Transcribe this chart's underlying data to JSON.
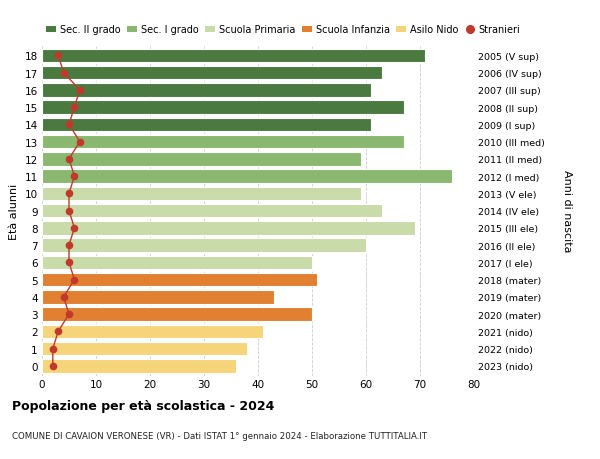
{
  "ages": [
    0,
    1,
    2,
    3,
    4,
    5,
    6,
    7,
    8,
    9,
    10,
    11,
    12,
    13,
    14,
    15,
    16,
    17,
    18
  ],
  "right_labels": [
    "2023 (nido)",
    "2022 (nido)",
    "2021 (nido)",
    "2020 (mater)",
    "2019 (mater)",
    "2018 (mater)",
    "2017 (I ele)",
    "2016 (II ele)",
    "2015 (III ele)",
    "2014 (IV ele)",
    "2013 (V ele)",
    "2012 (I med)",
    "2011 (II med)",
    "2010 (III med)",
    "2009 (I sup)",
    "2008 (II sup)",
    "2007 (III sup)",
    "2006 (IV sup)",
    "2005 (V sup)"
  ],
  "bar_values": [
    36,
    38,
    41,
    50,
    43,
    51,
    50,
    60,
    69,
    63,
    59,
    76,
    59,
    67,
    61,
    67,
    61,
    63,
    71
  ],
  "bar_colors": [
    "#f5d47a",
    "#f5d47a",
    "#f5d47a",
    "#e08030",
    "#e08030",
    "#e08030",
    "#c8dba8",
    "#c8dba8",
    "#c8dba8",
    "#c8dba8",
    "#c8dba8",
    "#8ab870",
    "#8ab870",
    "#8ab870",
    "#4a7a40",
    "#4a7a40",
    "#4a7a40",
    "#4a7a40",
    "#4a7a40"
  ],
  "stranieri": [
    2,
    2,
    3,
    5,
    4,
    6,
    5,
    5,
    6,
    5,
    5,
    6,
    5,
    7,
    5,
    6,
    7,
    4,
    3
  ],
  "legend_labels": [
    "Sec. II grado",
    "Sec. I grado",
    "Scuola Primaria",
    "Scuola Infanzia",
    "Asilo Nido",
    "Stranieri"
  ],
  "legend_colors": [
    "#4a7a40",
    "#8ab870",
    "#c8dba8",
    "#e08030",
    "#f5d47a",
    "#c0392b"
  ],
  "ylabel_left": "Età alunni",
  "ylabel_right": "Anni di nascita",
  "title": "Popolazione per età scolastica - 2024",
  "subtitle": "COMUNE DI CAVAION VERONESE (VR) - Dati ISTAT 1° gennaio 2024 - Elaborazione TUTTITALIA.IT",
  "xlim": [
    0,
    80
  ],
  "xticks": [
    0,
    10,
    20,
    30,
    40,
    50,
    60,
    70,
    80
  ],
  "background_color": "#ffffff",
  "grid_color": "#cccccc"
}
